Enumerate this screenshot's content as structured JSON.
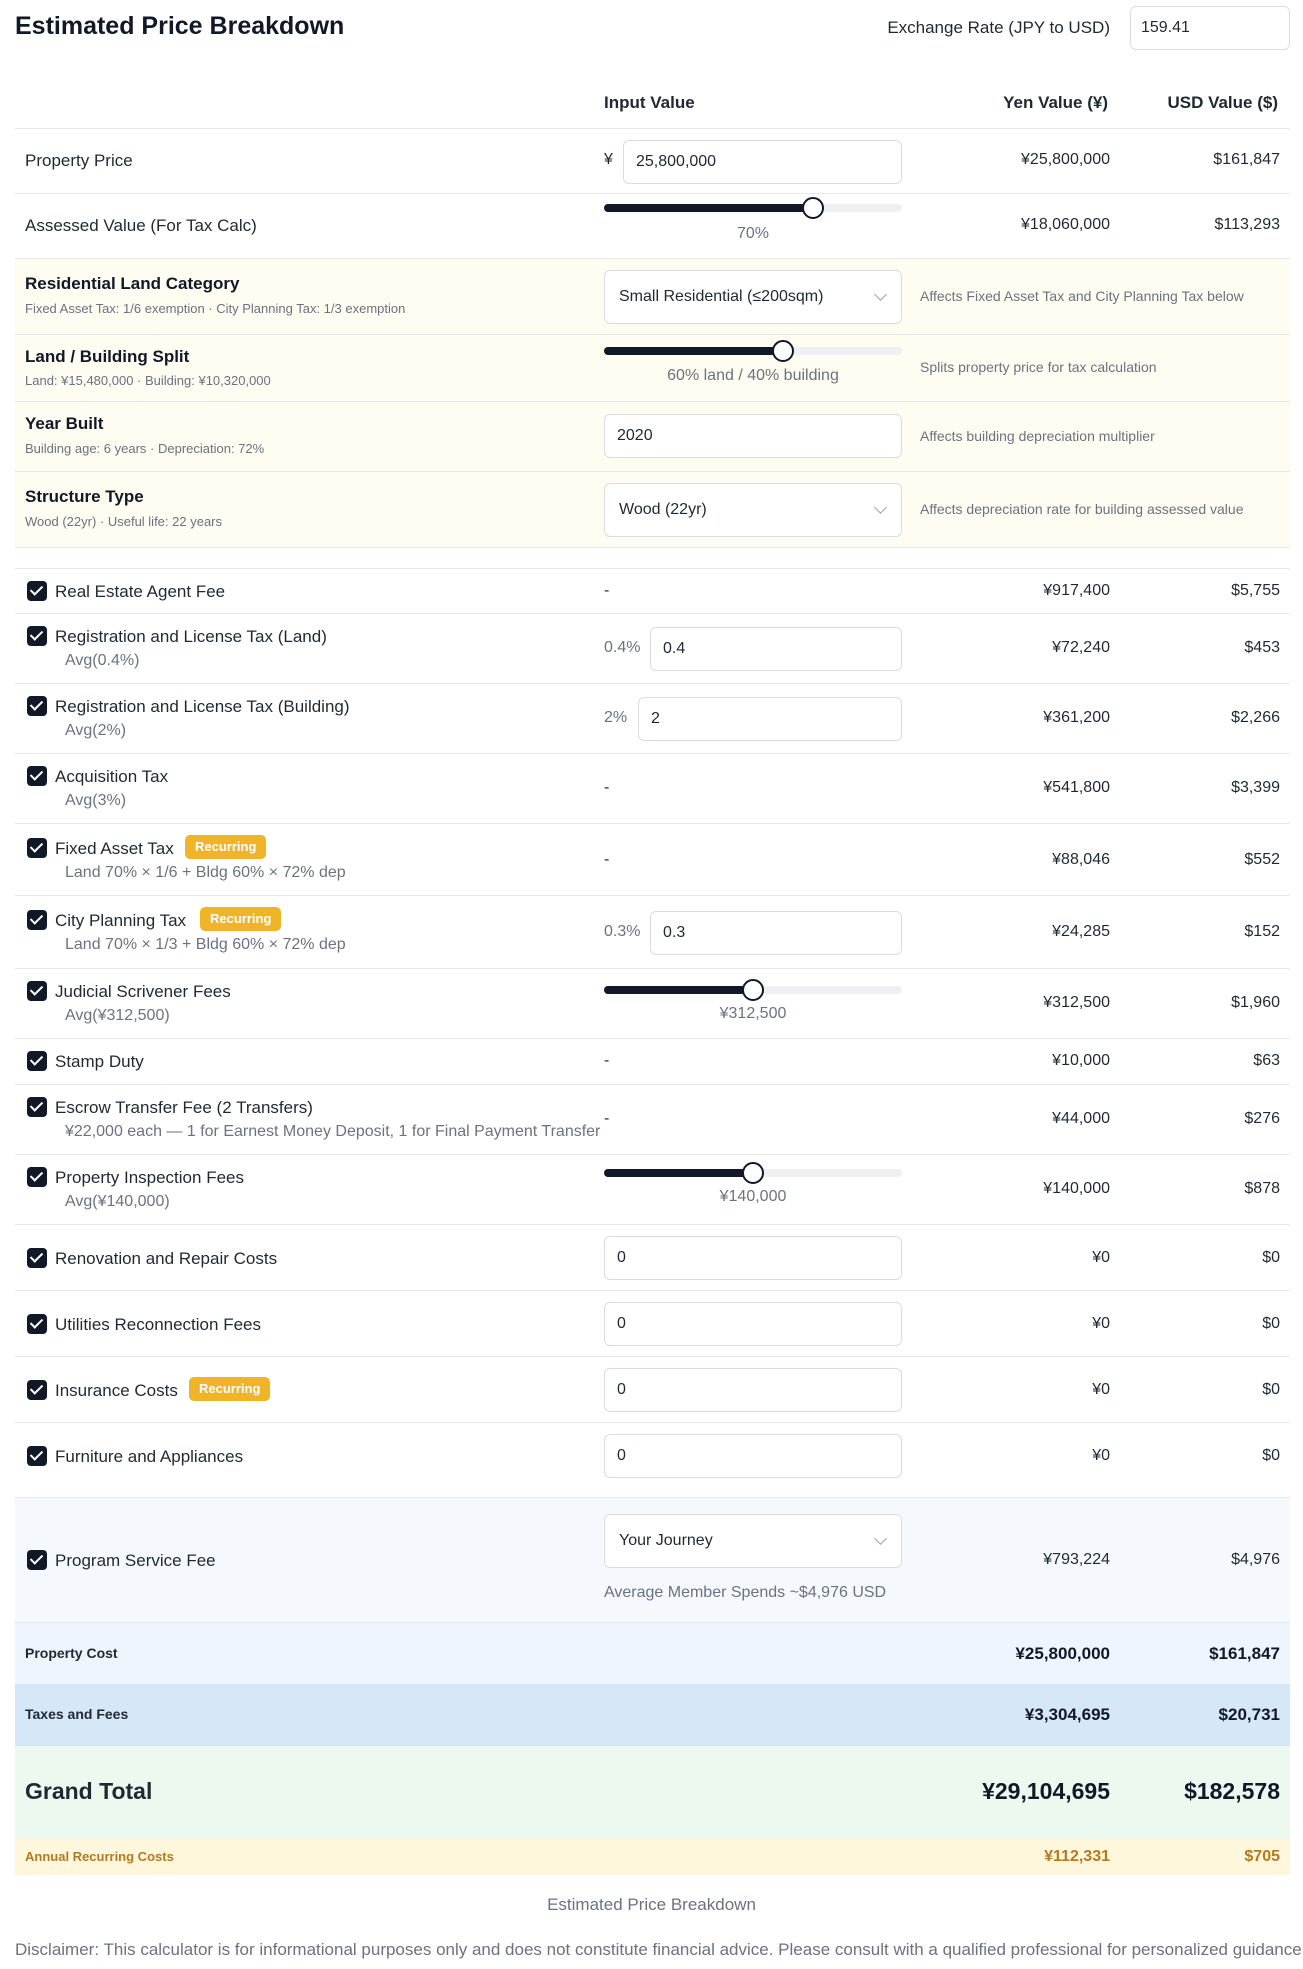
{
  "header": {
    "title": "Estimated Price Breakdown",
    "exchange_rate_label": "Exchange Rate (JPY to USD)",
    "exchange_rate_value": "159.41"
  },
  "columns": {
    "input": "Input Value",
    "yen": "Yen Value (¥)",
    "usd": "USD Value ($)"
  },
  "property_price": {
    "label": "Property Price",
    "currency_symbol": "¥",
    "value": "25,800,000",
    "yen": "¥25,800,000",
    "usd": "$161,847"
  },
  "assessed_value": {
    "label": "Assessed Value (For Tax Calc)",
    "slider_label": "70%",
    "level_fraction": 0.7,
    "yen": "¥18,060,000",
    "usd": "$113,293"
  },
  "config": {
    "land_category": {
      "title": "Residential Land Category",
      "sub": "Fixed Asset Tax: 1/6 exemption · City Planning Tax: 1/3 exemption",
      "selected": "Small Residential (≤200sqm)",
      "note": "Affects Fixed Asset Tax and City Planning Tax below"
    },
    "split": {
      "title": "Land / Building Split",
      "sub": "Land: ¥15,480,000 · Building: ¥10,320,000",
      "slider_label": "60% land / 40% building",
      "level_fraction": 0.6,
      "note": "Splits property price for tax calculation"
    },
    "year_built": {
      "title": "Year Built",
      "sub": "Building age: 6 years · Depreciation: 72%",
      "value": "2020",
      "note": "Affects building depreciation multiplier"
    },
    "structure": {
      "title": "Structure Type",
      "sub": "Wood (22yr) · Useful life: 22 years",
      "selected": "Wood (22yr)",
      "note": "Affects depreciation rate for building assessed value"
    }
  },
  "badge_text": "Recurring",
  "items": {
    "agent_fee": {
      "label": "Real Estate Agent Fee",
      "input": "-",
      "yen": "¥917,400",
      "usd": "$5,755"
    },
    "reg_land": {
      "label": "Registration and License Tax (Land)",
      "sub": "Avg(0.4%)",
      "pct": "0.4%",
      "value": "0.4",
      "yen": "¥72,240",
      "usd": "$453"
    },
    "reg_building": {
      "label": "Registration and License Tax (Building)",
      "sub": "Avg(2%)",
      "pct": "2%",
      "value": "2",
      "yen": "¥361,200",
      "usd": "$2,266"
    },
    "acq_tax": {
      "label": "Acquisition Tax",
      "sub": "Avg(3%)",
      "input": "-",
      "yen": "¥541,800",
      "usd": "$3,399"
    },
    "fixed_asset": {
      "label": "Fixed Asset Tax",
      "sub": "Land 70% × 1/6 + Bldg 60% × 72% dep",
      "input": "-",
      "yen": "¥88,046",
      "usd": "$552"
    },
    "city_planning": {
      "label": "City Planning Tax",
      "sub": "Land 70% × 1/3 + Bldg 60% × 72% dep",
      "pct": "0.3%",
      "value": "0.3",
      "yen": "¥24,285",
      "usd": "$152"
    },
    "scrivener": {
      "label": "Judicial Scrivener Fees",
      "sub": "Avg(¥312,500)",
      "slider_label": "¥312,500",
      "level_fraction": 0.5,
      "yen": "¥312,500",
      "usd": "$1,960"
    },
    "stamp": {
      "label": "Stamp Duty",
      "input": "-",
      "yen": "¥10,000",
      "usd": "$63"
    },
    "escrow": {
      "label": "Escrow Transfer Fee (2 Transfers)",
      "sub": "¥22,000 each — 1 for Earnest Money Deposit, 1 for Final Payment Transfer",
      "input": "-",
      "yen": "¥44,000",
      "usd": "$276"
    },
    "inspection": {
      "label": "Property Inspection Fees",
      "sub": "Avg(¥140,000)",
      "slider_label": "¥140,000",
      "level_fraction": 0.5,
      "yen": "¥140,000",
      "usd": "$878"
    },
    "renovation": {
      "label": "Renovation and Repair Costs",
      "value": "0",
      "yen": "¥0",
      "usd": "$0"
    },
    "utilities": {
      "label": "Utilities Reconnection Fees",
      "value": "0",
      "yen": "¥0",
      "usd": "$0"
    },
    "insurance": {
      "label": "Insurance Costs",
      "value": "0",
      "yen": "¥0",
      "usd": "$0"
    },
    "furniture": {
      "label": "Furniture and Appliances",
      "value": "0",
      "yen": "¥0",
      "usd": "$0"
    },
    "program_fee": {
      "label": "Program Service Fee",
      "selected": "Your Journey",
      "note": "Average Member Spends ~$4,976 USD",
      "yen": "¥793,224",
      "usd": "$4,976"
    }
  },
  "totals": {
    "property_cost": {
      "label": "Property Cost",
      "yen": "¥25,800,000",
      "usd": "$161,847"
    },
    "taxes_fees": {
      "label": "Taxes and Fees",
      "yen": "¥3,304,695",
      "usd": "$20,731"
    },
    "grand_total": {
      "label": "Grand Total",
      "yen": "¥29,104,695",
      "usd": "$182,578"
    },
    "annual": {
      "label": "Annual Recurring Costs",
      "yen": "¥112,331",
      "usd": "$705"
    }
  },
  "footer": {
    "caption": "Estimated Price Breakdown",
    "disclaimer": "Disclaimer: This calculator is for informational purposes only and does not constitute financial advice. Please consult with a qualified professional for personalized guidance."
  },
  "colors": {
    "accent": "#111827",
    "badge": "#f0b429",
    "grand_total_bg": "#edf8ef",
    "taxes_bg": "#d6e7f7",
    "annual_text": "#b7791f"
  }
}
